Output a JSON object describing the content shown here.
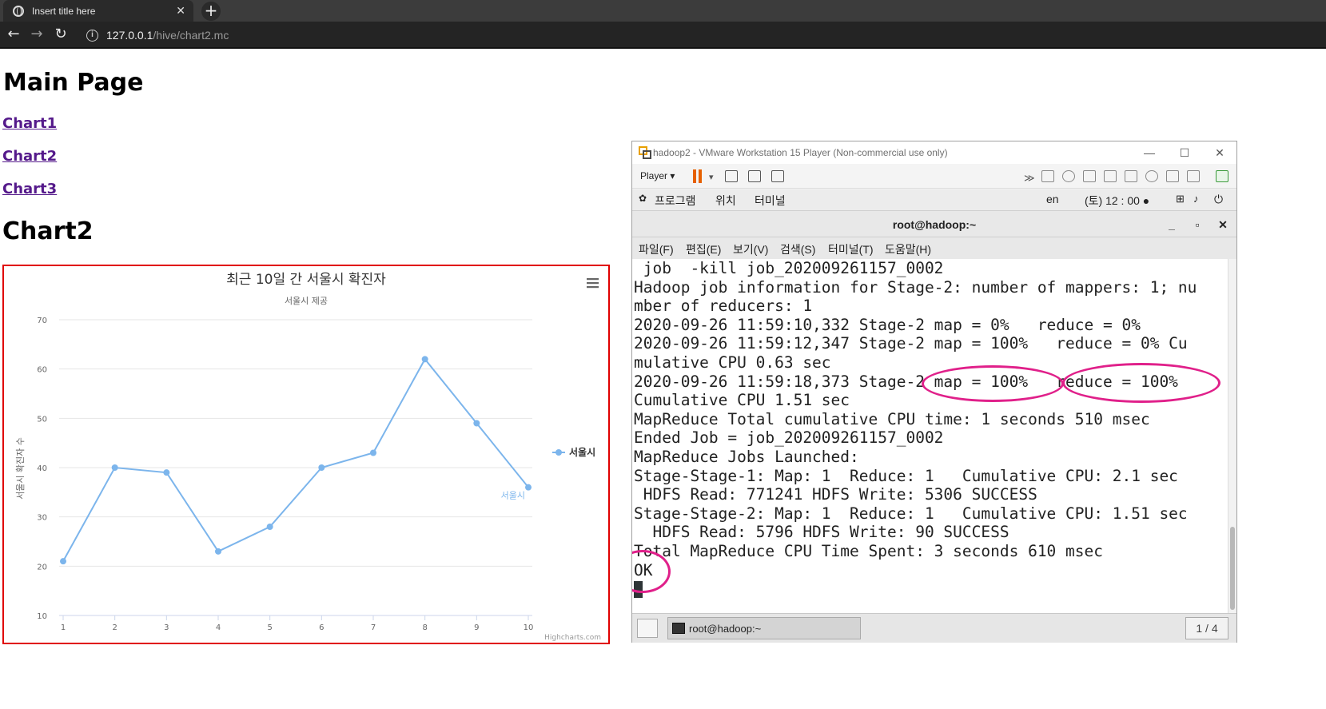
{
  "browser": {
    "tab_title": "Insert title here",
    "tab_close": "✕",
    "new_tab": "+",
    "url_host": "127.0.0.1",
    "url_path": "/hive/chart2.mc",
    "info_badge": "i"
  },
  "page": {
    "title": "Main Page",
    "links": [
      "Chart1",
      "Chart2",
      "Chart3"
    ],
    "section_title": "Chart2"
  },
  "chart_data": {
    "type": "line",
    "title": "최근 10일 간 서울시 확진자",
    "subtitle": "서울시 제공",
    "xlabel": "",
    "ylabel": "서울시 확진자 수",
    "categories": [
      "1",
      "2",
      "3",
      "4",
      "5",
      "6",
      "7",
      "8",
      "9",
      "10"
    ],
    "series": [
      {
        "name": "서울시",
        "values": [
          21,
          40,
          39,
          23,
          28,
          40,
          43,
          62,
          49,
          36
        ],
        "color": "#7cb5ec"
      }
    ],
    "y_ticks": [
      10,
      20,
      30,
      40,
      50,
      60,
      70
    ],
    "ylim": [
      10,
      70
    ],
    "grid": true,
    "legend_position": "right",
    "series_end_label": "서울시",
    "credits": "Highcharts.com",
    "menu_icon": "hamburger-icon"
  },
  "vmware": {
    "title": "hadoop2 - VMware Workstation 15 Player (Non-commercial use only)",
    "minimize": "—",
    "maximize": "☐",
    "close": "✕",
    "player_label": "Player ▾",
    "gnome_menu": [
      "프로그램",
      "위치",
      "터미널"
    ],
    "keyboard": "en",
    "clock": "(토) 12 : 00 ●",
    "terminal_title": "root@hadoop:~",
    "terminal_buttons": [
      "_",
      "▫",
      "✕"
    ],
    "terminal_menu": [
      "파일(F)",
      "편집(E)",
      "보기(V)",
      "검색(S)",
      "터미널(T)",
      "도움말(H)"
    ],
    "terminal_lines": [
      " job  -kill job_202009261157_0002",
      "Hadoop job information for Stage-2: number of mappers: 1; nu",
      "mber of reducers: 1",
      "2020-09-26 11:59:10,332 Stage-2 map = 0%   reduce = 0%",
      "2020-09-26 11:59:12,347 Stage-2 map = 100%   reduce = 0% Cu",
      "mulative CPU 0.63 sec",
      "2020-09-26 11:59:18,373 Stage-2 map = 100%   reduce = 100%",
      "Cumulative CPU 1.51 sec",
      "MapReduce Total cumulative CPU time: 1 seconds 510 msec",
      "Ended Job = job_202009261157_0002",
      "MapReduce Jobs Launched:",
      "Stage-Stage-1: Map: 1  Reduce: 1   Cumulative CPU: 2.1 sec",
      " HDFS Read: 771241 HDFS Write: 5306 SUCCESS",
      "Stage-Stage-2: Map: 1  Reduce: 1   Cumulative CPU: 1.51 sec",
      "  HDFS Read: 5796 HDFS Write: 90 SUCCESS",
      "Total MapReduce CPU Time Spent: 3 seconds 610 msec",
      "OK"
    ],
    "taskbar_item": "root@hadoop:~",
    "pager": "1 / 4",
    "highlight_color": "#e0208a"
  }
}
